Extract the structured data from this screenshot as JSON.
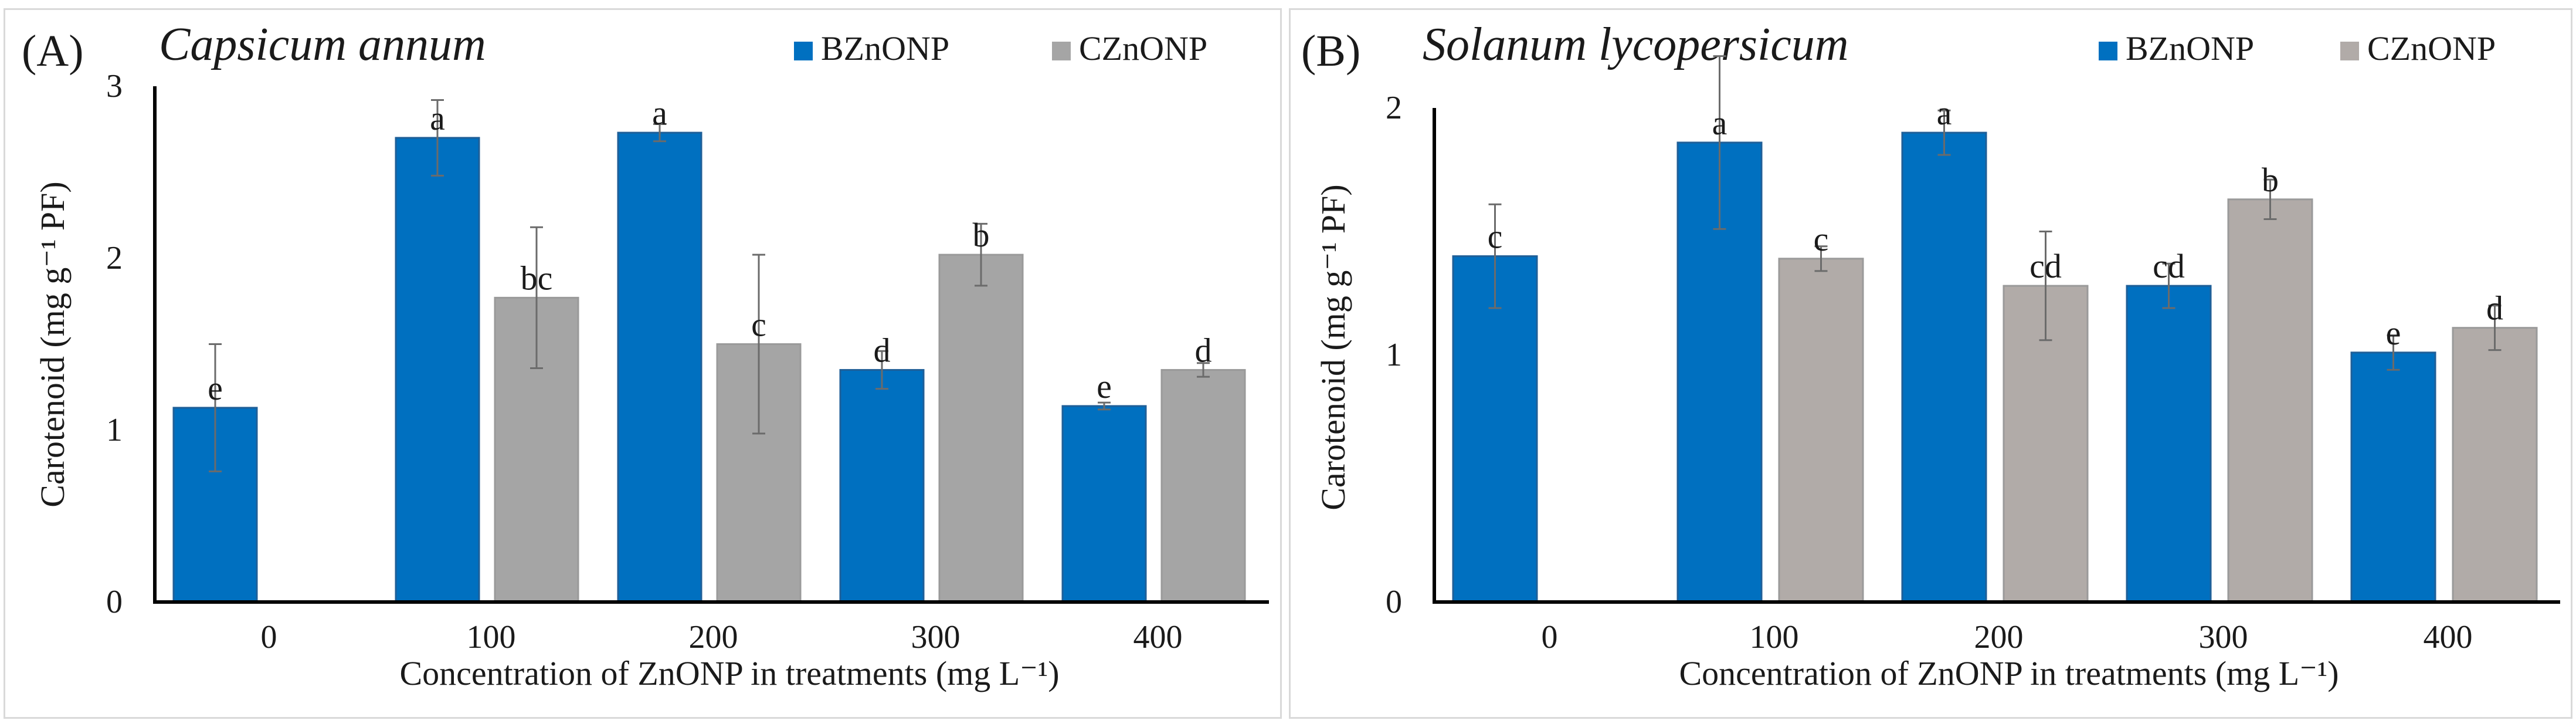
{
  "chart_data": [
    {
      "type": "bar",
      "panel_tag": "(A)",
      "title": "Capsicum annum",
      "categories": [
        "0",
        "100",
        "200",
        "300",
        "400"
      ],
      "series": [
        {
          "name": "BZnONP",
          "color": "#0070c0",
          "values": [
            1.13,
            2.7,
            2.73,
            1.35,
            1.14
          ],
          "errors": [
            0.37,
            0.22,
            0.05,
            0.11,
            0.02
          ],
          "labels": [
            "e",
            "a",
            "a",
            "d",
            "e"
          ]
        },
        {
          "name": "CZnONP",
          "color": "#a5a5a5",
          "values": [
            null,
            1.77,
            1.5,
            2.02,
            1.35
          ],
          "errors": [
            null,
            0.41,
            0.52,
            0.18,
            0.04
          ],
          "labels": [
            "",
            "bc",
            "c",
            "b",
            "d"
          ]
        }
      ],
      "xlabel": "Concentration of  ZnONP in treatments (mg L⁻¹)",
      "ylabel": "Carotenoid (mg g⁻¹ PF)",
      "ylim": [
        0,
        3
      ],
      "yticks": [
        "0",
        "1",
        "2",
        "3"
      ],
      "grid": false,
      "legend": "top-right"
    },
    {
      "type": "bar",
      "panel_tag": "(B)",
      "title": "Solanum lycopersicum",
      "categories": [
        "0",
        "100",
        "200",
        "300",
        "400"
      ],
      "series": [
        {
          "name": "BZnONP",
          "color": "#0070c0",
          "values": [
            1.4,
            1.86,
            1.9,
            1.28,
            1.01
          ],
          "errors": [
            0.21,
            0.35,
            0.09,
            0.09,
            0.07
          ],
          "labels": [
            "c",
            "a",
            "a",
            "cd",
            "e"
          ]
        },
        {
          "name": "CZnONP",
          "color": "#b1aba8",
          "values": [
            null,
            1.39,
            1.28,
            1.63,
            1.11
          ],
          "errors": [
            null,
            0.05,
            0.22,
            0.08,
            0.09
          ],
          "labels": [
            "",
            "c",
            "cd",
            "b",
            "d"
          ]
        }
      ],
      "xlabel": "Concentration of  ZnONP in treatments (mg L⁻¹)",
      "ylabel": "Carotenoid (mg g⁻¹ PF)",
      "ylim": [
        0,
        2
      ],
      "yticks": [
        "0",
        "1",
        "2"
      ],
      "grid": false,
      "legend": "top-right"
    }
  ]
}
